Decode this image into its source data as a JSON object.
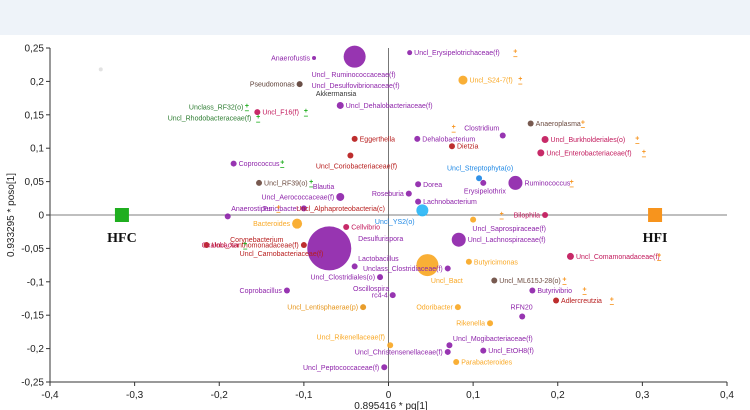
{
  "chart_data": {
    "type": "scatter",
    "title": "",
    "xlabel": "0.895416 * pq[1]",
    "ylabel": "0.933295 * poso[1]",
    "xlim": [
      -0.4,
      0.4
    ],
    "ylim": [
      -0.25,
      0.25
    ],
    "x_ticks": [
      "-0,4",
      "-0,3",
      "-0,2",
      "-0,1",
      "0",
      "0,1",
      "0,2",
      "0,3",
      "0,4"
    ],
    "y_ticks": [
      "0,25",
      "0,2",
      "0,15",
      "0,1",
      "0,05",
      "0",
      "-0,05",
      "-0,1",
      "-0,15",
      "-0,2",
      "-0,25"
    ],
    "grid": false,
    "groups": [
      {
        "name": "HFC",
        "x": -0.315,
        "y": 0.0,
        "color": "#1fae1f"
      },
      {
        "name": "HFI",
        "x": 0.315,
        "y": 0.0,
        "color": "#f7941d"
      }
    ],
    "points": [
      {
        "label": "Anaerofustis",
        "x": -0.088,
        "y": 0.235,
        "size": 2,
        "color": "#8e24aa",
        "label_side": "left"
      },
      {
        "label": "",
        "x": -0.04,
        "y": 0.237,
        "size": 11,
        "color": "#8e24aa"
      },
      {
        "label": "Uncl_ Ruminococcaceae(f)",
        "x": -0.095,
        "y": 0.21,
        "size": 0,
        "color": "#8e24aa",
        "label_side": "right"
      },
      {
        "label": "Uncl_Erysipelotrichaceae(f)",
        "x": 0.025,
        "y": 0.243,
        "size": 2.5,
        "color": "#8e24aa",
        "label_side": "right",
        "marker": "plus_orange"
      },
      {
        "label": "Pseudomonas",
        "x": -0.105,
        "y": 0.196,
        "size": 3,
        "color": "#5d4037",
        "label_side": "left"
      },
      {
        "label": "Uncl_Desulfovibrionaceae(f)",
        "x": -0.095,
        "y": 0.194,
        "size": 0,
        "color": "#8e24aa",
        "label_side": "right"
      },
      {
        "label": "Akkermansia",
        "x": -0.09,
        "y": 0.182,
        "size": 0,
        "color": "#333333",
        "label_side": "right"
      },
      {
        "label": "Uncl_S24-7(f)",
        "x": 0.088,
        "y": 0.202,
        "size": 4.5,
        "color": "#f9a825",
        "label_side": "right",
        "marker": "plus_orange"
      },
      {
        "label": "Unclass_RF32(o)",
        "x": -0.24,
        "y": 0.162,
        "size": 0,
        "color": "#2e7d32",
        "label_side": "right",
        "marker": "plus_green"
      },
      {
        "label": "Uncl_F16(f)",
        "x": -0.155,
        "y": 0.154,
        "size": 3,
        "color": "#c2185b",
        "label_side": "right",
        "marker": "plus_green"
      },
      {
        "label": "Uncl_Rhodobacteraceae(f)",
        "x": -0.265,
        "y": 0.145,
        "size": 0,
        "color": "#2e7d32",
        "label_side": "right",
        "marker": "plus_green"
      },
      {
        "label": "Uncl_Dehalobacteriaceae(f)",
        "x": -0.057,
        "y": 0.164,
        "size": 3.5,
        "color": "#8e24aa",
        "label_side": "right"
      },
      {
        "label": "Anaeroplasma",
        "x": 0.168,
        "y": 0.137,
        "size": 3,
        "color": "#6d4c41",
        "label_side": "right",
        "marker": "plus_orange"
      },
      {
        "label": "Clostridium",
        "x": 0.135,
        "y": 0.13,
        "size": 0,
        "color": "#8e24aa",
        "label_side": "left",
        "marker": "plus_orange"
      },
      {
        "label": "Uncl_Burkholderiales(o)",
        "x": 0.185,
        "y": 0.113,
        "size": 3.5,
        "color": "#c2185b",
        "label_side": "right",
        "marker": "plus_orange"
      },
      {
        "label": "Eggerthella",
        "x": -0.04,
        "y": 0.114,
        "size": 3,
        "color": "#b71c1c",
        "label_side": "right"
      },
      {
        "label": "Dehalobacterium",
        "x": 0.034,
        "y": 0.114,
        "size": 3,
        "color": "#8e24aa",
        "label_side": "right"
      },
      {
        "label": "Dietzia",
        "x": 0.075,
        "y": 0.103,
        "size": 3,
        "color": "#b71c1c",
        "label_side": "right"
      },
      {
        "label": "Uncl_Enterobacteriaceae(f)",
        "x": 0.18,
        "y": 0.093,
        "size": 3.5,
        "color": "#c2185b",
        "label_side": "right",
        "marker": "plus_orange"
      },
      {
        "label": "",
        "x": 0.135,
        "y": 0.119,
        "size": 3,
        "color": "#8e24aa"
      },
      {
        "label": "Coprococcus",
        "x": -0.183,
        "y": 0.077,
        "size": 3,
        "color": "#8e24aa",
        "label_side": "right",
        "marker": "plus_green"
      },
      {
        "label": "",
        "x": -0.045,
        "y": 0.089,
        "size": 3,
        "color": "#b71c1c"
      },
      {
        "label": "Uncl_Coriobacteriaceae(f)",
        "x": -0.09,
        "y": 0.073,
        "size": 0,
        "color": "#b71c1c",
        "label_side": "right"
      },
      {
        "label": "Uncl_Streptophyta(o)",
        "x": 0.065,
        "y": 0.07,
        "size": 0,
        "color": "#1e88e5",
        "label_side": "right"
      },
      {
        "label": "",
        "x": 0.107,
        "y": 0.055,
        "size": 3,
        "color": "#1e88e5"
      },
      {
        "label": "Uncl_RF39(o)",
        "x": -0.153,
        "y": 0.048,
        "size": 3,
        "color": "#6d4c41",
        "label_side": "right",
        "marker": "plus_green"
      },
      {
        "label": "Dorea",
        "x": 0.035,
        "y": 0.046,
        "size": 3,
        "color": "#8e24aa",
        "label_side": "right"
      },
      {
        "label": "",
        "x": 0.112,
        "y": 0.048,
        "size": 3,
        "color": "#8e24aa"
      },
      {
        "label": "Ruminococcus",
        "x": 0.15,
        "y": 0.048,
        "size": 7,
        "color": "#8e24aa",
        "label_side": "right",
        "marker": "plus_orange"
      },
      {
        "label": "Blautia",
        "x": -0.06,
        "y": 0.043,
        "size": 0,
        "color": "#8e24aa",
        "label_side": "left"
      },
      {
        "label": "Erysipelothrix",
        "x": 0.085,
        "y": 0.036,
        "size": 0,
        "color": "#8e24aa",
        "label_side": "right"
      },
      {
        "label": "Uncl_Aerococcaceae(f)",
        "x": -0.057,
        "y": 0.027,
        "size": 4,
        "color": "#8e24aa",
        "label_side": "left"
      },
      {
        "label": "Roseburia",
        "x": 0.024,
        "y": 0.032,
        "size": 3,
        "color": "#8e24aa",
        "label_side": "left"
      },
      {
        "label": "Lachnobacterium",
        "x": 0.035,
        "y": 0.02,
        "size": 3,
        "color": "#8e24aa",
        "label_side": "right"
      },
      {
        "label": "Anaerostipes",
        "x": -0.19,
        "y": 0.01,
        "size": 0,
        "color": "#8e24aa",
        "label_side": "right",
        "marker": "plus_orange"
      },
      {
        "label": "Turicibacter",
        "x": -0.1,
        "y": 0.01,
        "size": 3,
        "color": "#8e24aa",
        "label_side": "left"
      },
      {
        "label": "Uncl_Alphaproteobacteria(c)",
        "x": 0.0,
        "y": 0.01,
        "size": 0,
        "color": "#b71c1c",
        "label_side": "left"
      },
      {
        "label": "",
        "x": 0.04,
        "y": 0.007,
        "size": 6,
        "color": "#29b6f6"
      },
      {
        "label": "Bilophila",
        "x": 0.185,
        "y": 0.0,
        "size": 3,
        "color": "#c2185b",
        "label_side": "left",
        "marker": "plus_orange"
      },
      {
        "label": "",
        "x": -0.19,
        "y": -0.002,
        "size": 3,
        "color": "#8e24aa"
      },
      {
        "label": "Uncl_YS2(o)",
        "x": 0.035,
        "y": -0.01,
        "size": 0,
        "color": "#1e88e5",
        "label_side": "left"
      },
      {
        "label": "",
        "x": 0.1,
        "y": -0.007,
        "size": 3,
        "color": "#f9a825"
      },
      {
        "label": "Bacteroides",
        "x": -0.108,
        "y": -0.013,
        "size": 5,
        "color": "#f9a825",
        "label_side": "left"
      },
      {
        "label": "Cellvibrio",
        "x": -0.05,
        "y": -0.018,
        "size": 3,
        "color": "#c2185b",
        "label_side": "right"
      },
      {
        "label": "Uncl_Saprospiraceae(f)",
        "x": 0.095,
        "y": -0.02,
        "size": 0,
        "color": "#8e24aa",
        "label_side": "right"
      },
      {
        "label": "Desulfurispora",
        "x": -0.04,
        "y": -0.035,
        "size": 0,
        "color": "#8e24aa",
        "label_side": "right"
      },
      {
        "label": "Uncl_Lachnospiraceae(f)",
        "x": 0.083,
        "y": -0.037,
        "size": 7,
        "color": "#8e24aa",
        "label_side": "right"
      },
      {
        "label": "Corynebacterium",
        "x": -0.12,
        "y": -0.037,
        "size": 0,
        "color": "#b71c1c",
        "label_side": "left"
      },
      {
        "label": "Oxalobacter",
        "x": -0.225,
        "y": -0.045,
        "size": 0,
        "color": "#c2185b",
        "label_side": "right",
        "marker": "plus_green"
      },
      {
        "label": "Uncl_Xanthomonadaceae(f)",
        "x": -0.215,
        "y": -0.045,
        "size": 3,
        "color": "#b71c1c",
        "label_side": "right"
      },
      {
        "label": "",
        "x": -0.07,
        "y": -0.05,
        "size": 22,
        "color": "#8e24aa"
      },
      {
        "label": "Uncl_Carnobacteriaceae(f)",
        "x": -0.18,
        "y": -0.058,
        "size": 0,
        "color": "#b71c1c",
        "label_side": "right"
      },
      {
        "label": "",
        "x": -0.1,
        "y": -0.045,
        "size": 3,
        "color": "#b71c1c"
      },
      {
        "label": "Uncl_Comamonadaceae(f)",
        "x": 0.215,
        "y": -0.062,
        "size": 3.5,
        "color": "#c2185b",
        "label_side": "right",
        "marker": "plus_orange"
      },
      {
        "label": "Lactobacillus",
        "x": -0.04,
        "y": -0.065,
        "size": 0,
        "color": "#8e24aa",
        "label_side": "right"
      },
      {
        "label": "Butyricimonas",
        "x": 0.095,
        "y": -0.07,
        "size": 3,
        "color": "#f9a825",
        "label_side": "right"
      },
      {
        "label": "",
        "x": 0.046,
        "y": -0.075,
        "size": 11,
        "color": "#f9a825"
      },
      {
        "label": "Unclass_Clostridiaceae(f)",
        "x": 0.07,
        "y": -0.08,
        "size": 3,
        "color": "#8e24aa",
        "label_side": "left"
      },
      {
        "label": "",
        "x": -0.04,
        "y": -0.077,
        "size": 3,
        "color": "#8e24aa"
      },
      {
        "label": "Uncl_ML615J-28(o)",
        "x": 0.125,
        "y": -0.098,
        "size": 3,
        "color": "#6d4c41",
        "label_side": "right",
        "marker": "plus_orange"
      },
      {
        "label": "Uncl_Clostridiales(o)",
        "x": -0.01,
        "y": -0.093,
        "size": 3,
        "color": "#8e24aa",
        "label_side": "left"
      },
      {
        "label": "Uncl_Bact",
        "x": 0.046,
        "y": -0.098,
        "size": 0,
        "color": "#f9a825",
        "label_side": "right"
      },
      {
        "label": "Coprobacillus",
        "x": -0.12,
        "y": -0.113,
        "size": 3,
        "color": "#8e24aa",
        "label_side": "left"
      },
      {
        "label": "Oscillospira",
        "x": 0.005,
        "y": -0.11,
        "size": 0,
        "color": "#8e24aa",
        "label_side": "left"
      },
      {
        "label": "Butyrivibrio",
        "x": 0.17,
        "y": -0.113,
        "size": 3,
        "color": "#8e24aa",
        "label_side": "right",
        "marker": "plus_orange"
      },
      {
        "label": "rc4-4",
        "x": 0.005,
        "y": -0.12,
        "size": 3,
        "color": "#8e24aa",
        "label_side": "left"
      },
      {
        "label": "Adlercreutzia",
        "x": 0.198,
        "y": -0.128,
        "size": 3,
        "color": "#b71c1c",
        "label_side": "right",
        "marker": "plus_orange"
      },
      {
        "label": "Uncl_Lentisphaerae(p)",
        "x": -0.03,
        "y": -0.138,
        "size": 3,
        "color": "#e6951a",
        "label_side": "left"
      },
      {
        "label": "Odoribacter",
        "x": 0.082,
        "y": -0.138,
        "size": 3,
        "color": "#f9a825",
        "label_side": "left"
      },
      {
        "label": "RFN20",
        "x": 0.14,
        "y": -0.138,
        "size": 0,
        "color": "#8e24aa",
        "label_side": "right"
      },
      {
        "label": "",
        "x": 0.158,
        "y": -0.152,
        "size": 3,
        "color": "#8e24aa"
      },
      {
        "label": "Rikenella",
        "x": 0.12,
        "y": -0.162,
        "size": 3,
        "color": "#f9a825",
        "label_side": "left"
      },
      {
        "label": "Uncl_Rikenellaceae(f)",
        "x": 0.0,
        "y": -0.183,
        "size": 0,
        "color": "#f9a825",
        "label_side": "left"
      },
      {
        "label": "Uncl_Mogibacteriaceae(f)",
        "x": 0.072,
        "y": -0.185,
        "size": 0,
        "color": "#8e24aa",
        "label_side": "right"
      },
      {
        "label": "",
        "x": 0.002,
        "y": -0.195,
        "size": 3,
        "color": "#f9a825"
      },
      {
        "label": "",
        "x": 0.072,
        "y": -0.195,
        "size": 3,
        "color": "#8e24aa"
      },
      {
        "label": "Uncl_Christensenellaceae(f)",
        "x": 0.07,
        "y": -0.205,
        "size": 3,
        "color": "#8e24aa",
        "label_side": "left"
      },
      {
        "label": "Uncl_EtOH8(f)",
        "x": 0.112,
        "y": -0.203,
        "size": 3,
        "color": "#8e24aa",
        "label_side": "right"
      },
      {
        "label": "Parabacteroides",
        "x": 0.08,
        "y": -0.22,
        "size": 3,
        "color": "#f9a825",
        "label_side": "right"
      },
      {
        "label": "Uncl_Peptococcaceae(f)",
        "x": -0.005,
        "y": -0.228,
        "size": 3,
        "color": "#8e24aa",
        "label_side": "left"
      },
      {
        "label": "",
        "x": -0.34,
        "y": 0.218,
        "size": 2,
        "color": "#e0e0e0"
      }
    ]
  }
}
